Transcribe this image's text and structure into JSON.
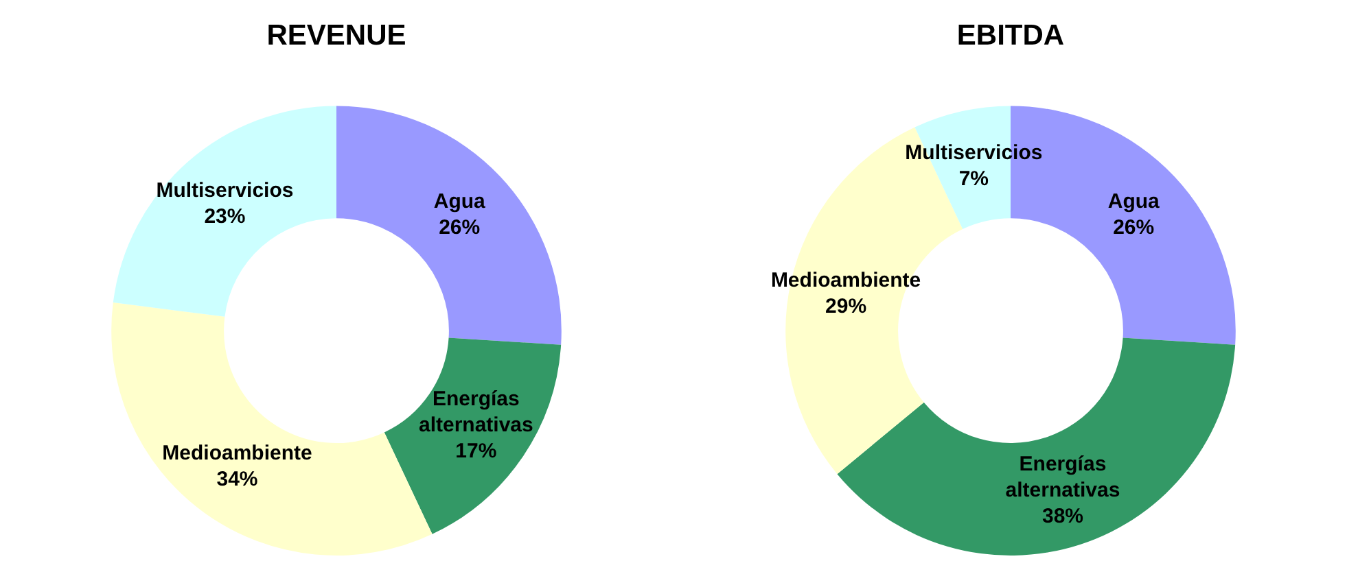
{
  "chart_data": [
    {
      "type": "donut",
      "title": "REVENUE",
      "categories": [
        "Agua",
        "Energías alternativas",
        "Medioambiente",
        "Multiservicios"
      ],
      "values": [
        26,
        17,
        34,
        23
      ],
      "colors": [
        "#9999ff",
        "#339966",
        "#ffffcc",
        "#ccffff"
      ],
      "value_labels": [
        "26%",
        "17%",
        "34%",
        "23%"
      ],
      "legend": false
    },
    {
      "type": "donut",
      "title": "EBITDA",
      "categories": [
        "Agua",
        "Energías alternativas",
        "Medioambiente",
        "Multiservicios"
      ],
      "values": [
        26,
        38,
        29,
        7
      ],
      "colors": [
        "#9999ff",
        "#339966",
        "#ffffcc",
        "#ccffff"
      ],
      "value_labels": [
        "26%",
        "38%",
        "29%",
        "7%"
      ],
      "legend": false
    }
  ]
}
